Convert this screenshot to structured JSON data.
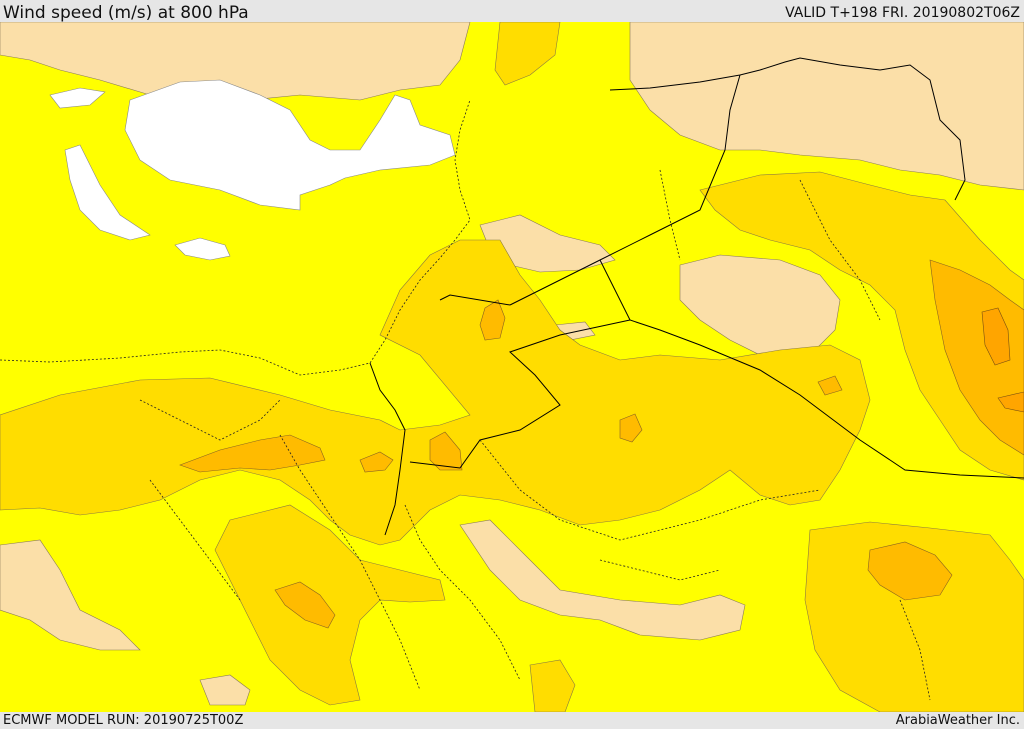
{
  "header": {
    "title": "Wind speed (m/s) at 800 hPa",
    "valid": "VALID T+198 FRI. 20190802T06Z"
  },
  "footer": {
    "model_run": "ECMWF MODEL RUN: 20190725T00Z",
    "credit": "ArabiaWeather Inc."
  },
  "map": {
    "variable": "Wind speed",
    "units": "m/s",
    "level_hpa": 800,
    "colors": {
      "calm": "#ffffff",
      "light": "#fbdfa8",
      "moderate": "#ffff00",
      "fresh": "#ffdd00",
      "strong": "#ffbb00",
      "very_strong": "#ffa500",
      "border_line": "#000000"
    }
  }
}
